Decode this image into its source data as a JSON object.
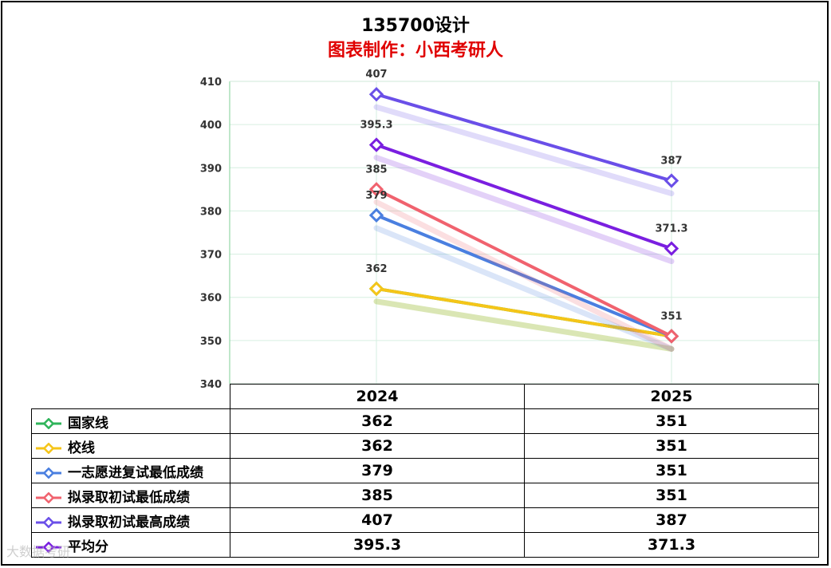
{
  "chart_data": {
    "type": "line",
    "title": "135700设计",
    "subtitle": "图表制作：小西考研人",
    "categories": [
      "2024",
      "2025"
    ],
    "ylim": [
      340,
      410
    ],
    "yticks": [
      340,
      350,
      360,
      370,
      380,
      390,
      400,
      410
    ],
    "grid": true,
    "legend": "table-bottom",
    "series": [
      {
        "name": "国家线",
        "values": [
          362,
          351
        ],
        "color": "#2fb45a",
        "labels": false
      },
      {
        "name": "校线",
        "values": [
          362,
          351
        ],
        "color": "#f5c518",
        "labels": true
      },
      {
        "name": "一志愿进复试最低成绩",
        "values": [
          379,
          351
        ],
        "color": "#4a7fe0",
        "labels": true
      },
      {
        "name": "拟录取初试最低成绩",
        "values": [
          385,
          351
        ],
        "color": "#f0626e",
        "labels": true
      },
      {
        "name": "拟录取初试最高成绩",
        "values": [
          407,
          387
        ],
        "color": "#6a4fe8",
        "labels": true
      },
      {
        "name": "平均分",
        "values": [
          395.3,
          371.3
        ],
        "color": "#7a1fe0",
        "labels": true
      }
    ],
    "table": {
      "header": [
        "2024",
        "2025"
      ],
      "rows": [
        [
          "362",
          "351"
        ],
        [
          "362",
          "351"
        ],
        [
          "379",
          "351"
        ],
        [
          "385",
          "351"
        ],
        [
          "407",
          "387"
        ],
        [
          "395.3",
          "371.3"
        ]
      ]
    }
  },
  "watermark": "大数据考研"
}
